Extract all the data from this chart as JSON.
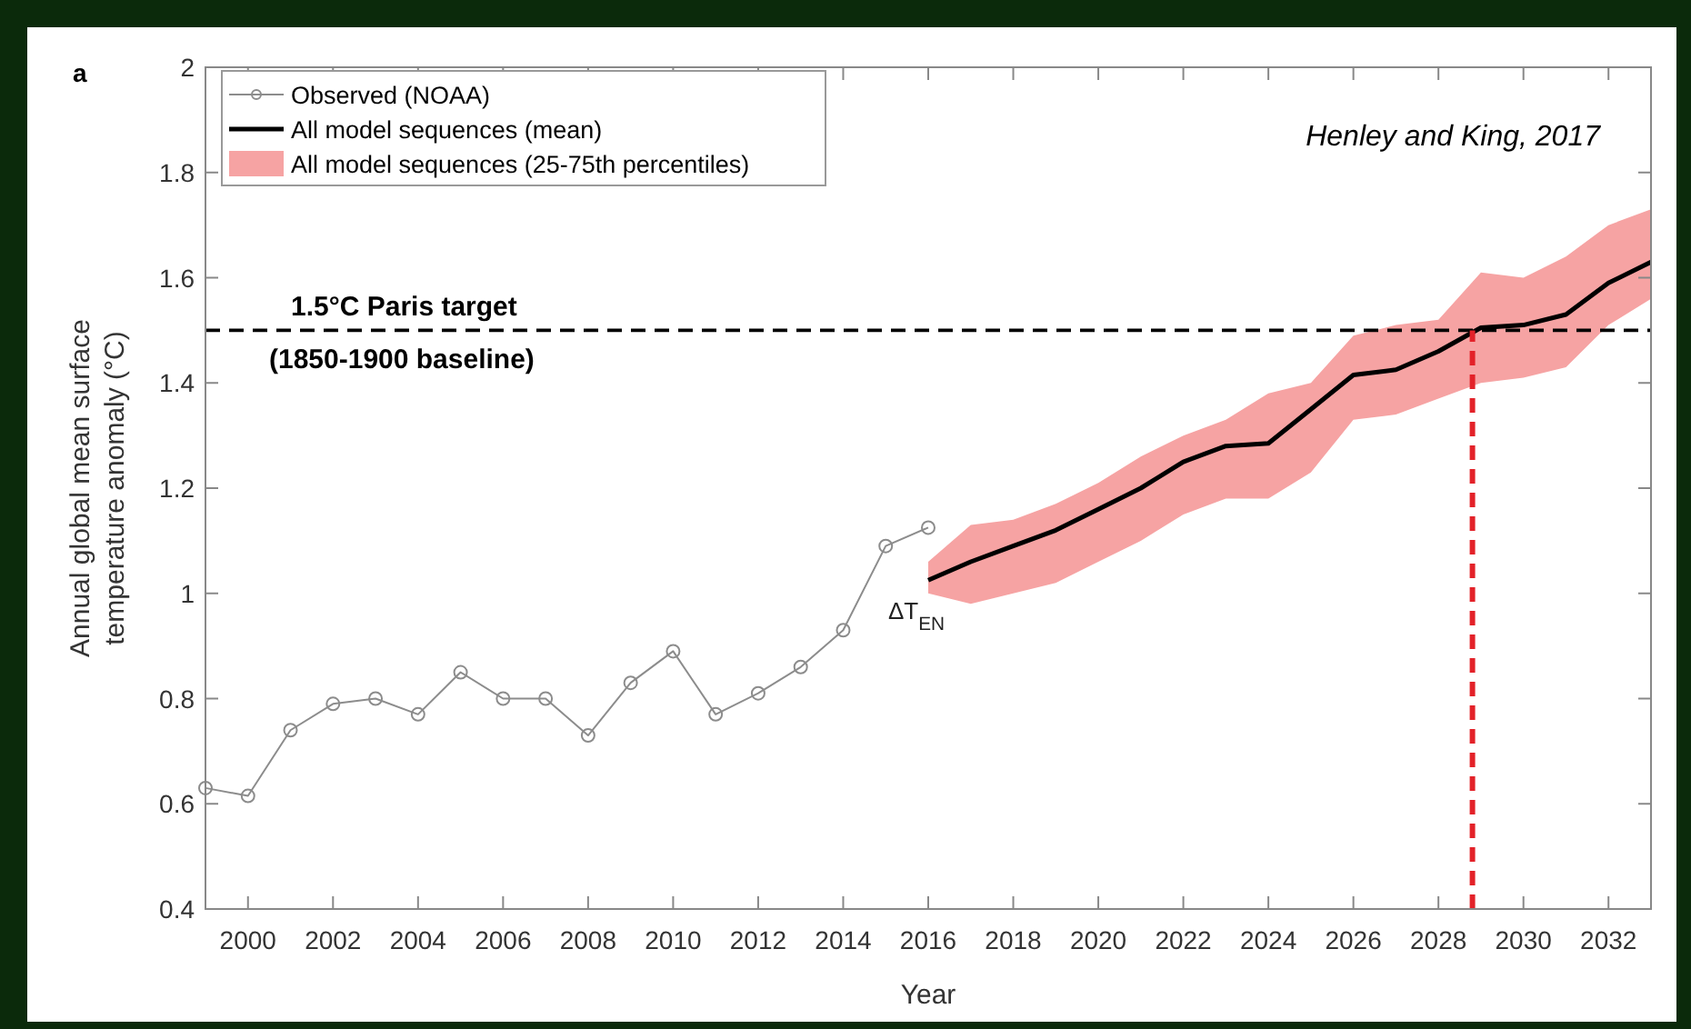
{
  "chart_data": {
    "type": "line",
    "xlabel": "Year",
    "ylabel": "Annual global mean surface\ntemperature anomaly (°C)",
    "xlim": [
      1999,
      2033
    ],
    "xticks": [
      2000,
      2002,
      2004,
      2006,
      2008,
      2010,
      2012,
      2014,
      2016,
      2018,
      2020,
      2022,
      2024,
      2026,
      2028,
      2030,
      2032
    ],
    "ylim": [
      0.4,
      2
    ],
    "yticks": [
      0.4,
      0.6,
      0.8,
      1,
      1.2,
      1.4,
      1.6,
      1.8,
      2
    ],
    "grid": false,
    "legend": "top left",
    "series": [
      {
        "name": "Observed (NOAA)",
        "color": "#8c8c8c",
        "marker": "circle",
        "x": [
          1999,
          2000,
          2001,
          2002,
          2003,
          2004,
          2005,
          2006,
          2007,
          2008,
          2009,
          2010,
          2011,
          2012,
          2013,
          2014,
          2015,
          2016
        ],
        "values": [
          0.63,
          0.615,
          0.74,
          0.79,
          0.8,
          0.77,
          0.85,
          0.8,
          0.8,
          0.73,
          0.83,
          0.89,
          0.77,
          0.81,
          0.86,
          0.93,
          1.09,
          1.125
        ]
      },
      {
        "name": "All model sequences (mean)",
        "color": "#000000",
        "marker": "none",
        "x": [
          2016,
          2017,
          2018,
          2019,
          2020,
          2021,
          2022,
          2023,
          2024,
          2025,
          2026,
          2027,
          2028,
          2029,
          2030,
          2031,
          2032,
          2033
        ],
        "values": [
          1.025,
          1.06,
          1.09,
          1.12,
          1.16,
          1.2,
          1.25,
          1.28,
          1.285,
          1.35,
          1.415,
          1.425,
          1.46,
          1.505,
          1.51,
          1.53,
          1.59,
          1.63
        ],
        "lower": [
          1.0,
          0.98,
          1.0,
          1.02,
          1.06,
          1.1,
          1.15,
          1.18,
          1.18,
          1.23,
          1.33,
          1.34,
          1.37,
          1.4,
          1.41,
          1.43,
          1.51,
          1.56
        ],
        "upper": [
          1.06,
          1.13,
          1.14,
          1.17,
          1.21,
          1.26,
          1.3,
          1.33,
          1.38,
          1.4,
          1.49,
          1.51,
          1.52,
          1.61,
          1.6,
          1.64,
          1.7,
          1.73
        ]
      }
    ],
    "ref_lines": [
      {
        "axis": "y",
        "value": 1.5,
        "label": "1.5°C Paris target\n(1850-1900 baseline)",
        "color": "#000000",
        "line_style": "dashed"
      },
      {
        "axis": "x",
        "value": 2028.8,
        "color": "#e32229",
        "line_style": "dashed"
      }
    ],
    "annotations": [
      "a",
      "Henley and King, 2017",
      "All model sequences (25-75th percentiles)",
      {
        "text": "ΔT$_{EN}$",
        "x": 2016,
        "y": 1.0
      }
    ]
  }
}
